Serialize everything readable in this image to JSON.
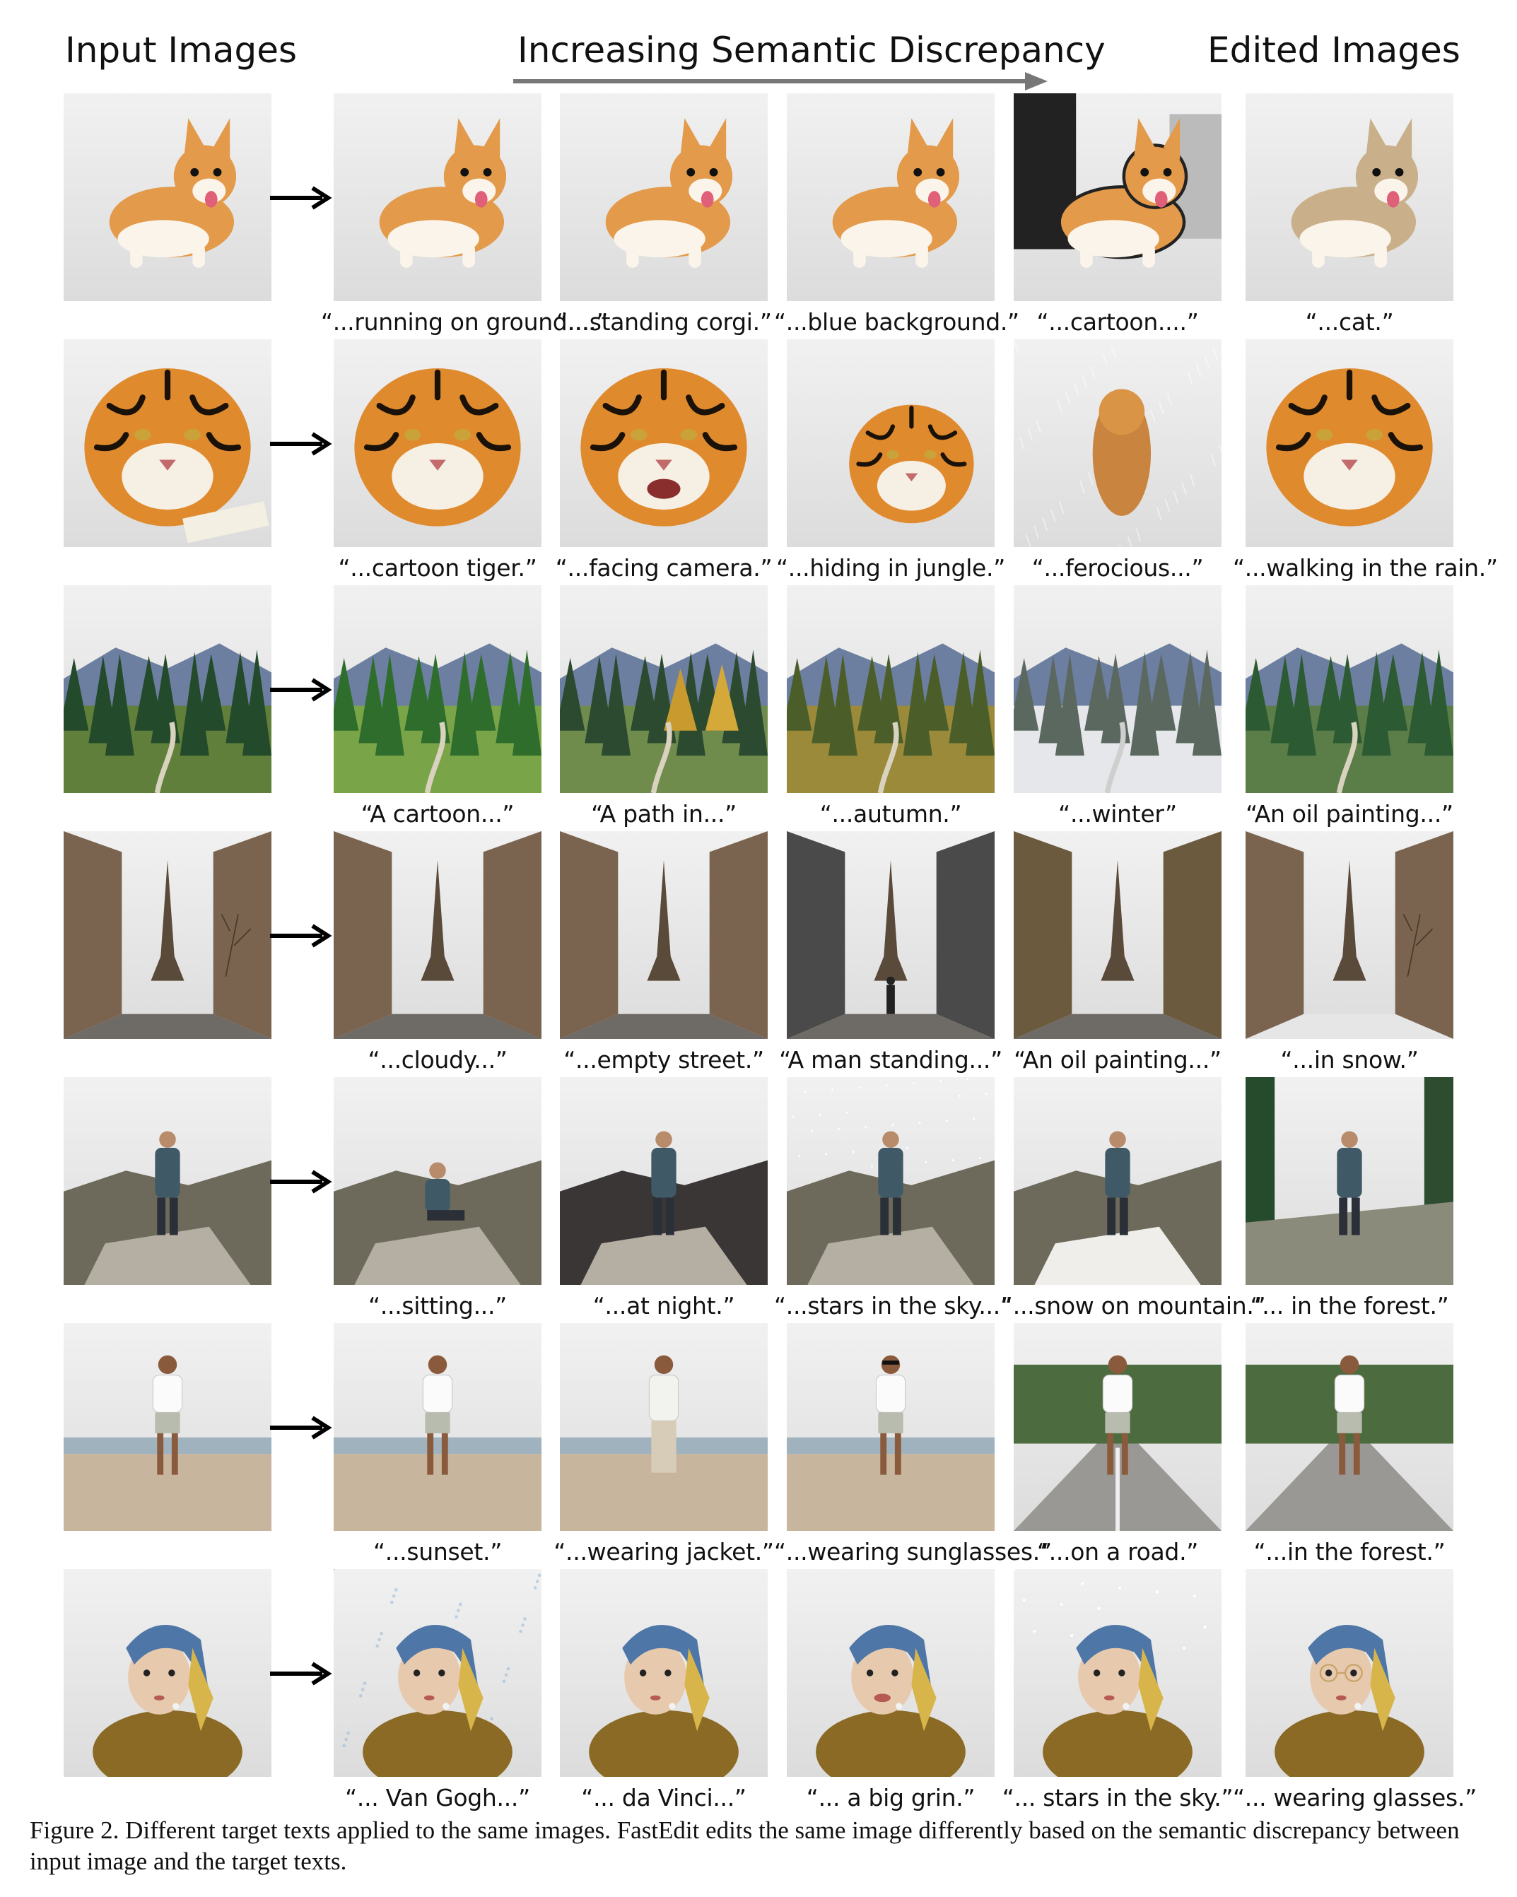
{
  "header": {
    "input_label": "Input Images",
    "discrepancy_label": "Increasing Semantic Discrepancy",
    "edited_label": "Edited Images"
  },
  "rows": [
    {
      "subject": "corgi",
      "captions": [
        "“...running on ground....”",
        "“...standing corgi.”",
        "“...blue background.”",
        "“...cartoon....”",
        "“...cat.”"
      ]
    },
    {
      "subject": "tiger",
      "captions": [
        "“...cartoon tiger.”",
        "“...facing camera.”",
        "“...hiding in jungle.”",
        "“...ferocious...”",
        "“...walking in the rain.”"
      ]
    },
    {
      "subject": "forest",
      "captions": [
        "“A cartoon...”",
        "“A path in...”",
        "“...autumn.”",
        "“...winter”",
        "“An oil painting...”"
      ]
    },
    {
      "subject": "eiffel",
      "captions": [
        "“...cloudy...”",
        "“...empty street.”",
        "“A man standing...”",
        "“An oil painting...”",
        "“...in snow.”"
      ]
    },
    {
      "subject": "hiker",
      "captions": [
        "“...sitting...”",
        "“...at night.”",
        "“...stars in the sky...”",
        "“...snow on mountain.”",
        "“... in the forest.”"
      ]
    },
    {
      "subject": "beach-man",
      "captions": [
        "“...sunset.”",
        "“...wearing jacket.”",
        "“...wearing sunglasses.”",
        "“...on a road.”",
        "“...in the forest.”"
      ]
    },
    {
      "subject": "pearl-earring",
      "captions": [
        "“... Van Gogh...”",
        "“... da Vinci...”",
        "“... a big grin.”",
        "“... stars in the sky.”",
        "“... wearing glasses.”"
      ]
    }
  ],
  "figure_caption": "Figure 2. Different target texts applied to the same images. FastEdit edits the same image differently based on the semantic discrepancy between input image and the target texts.",
  "colors": {
    "arrow": "#777777",
    "text": "#111111"
  }
}
